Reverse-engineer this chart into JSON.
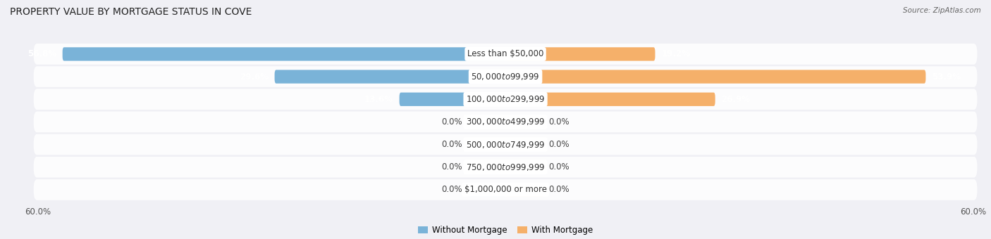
{
  "title": "PROPERTY VALUE BY MORTGAGE STATUS IN COVE",
  "source": "Source: ZipAtlas.com",
  "categories": [
    "Less than $50,000",
    "$50,000 to $99,999",
    "$100,000 to $299,999",
    "$300,000 to $499,999",
    "$500,000 to $749,999",
    "$750,000 to $999,999",
    "$1,000,000 or more"
  ],
  "without_mortgage": [
    56.8,
    29.6,
    13.6,
    0.0,
    0.0,
    0.0,
    0.0
  ],
  "with_mortgage": [
    19.2,
    53.9,
    26.9,
    0.0,
    0.0,
    0.0,
    0.0
  ],
  "xlim": 60.0,
  "color_without": "#7ab3d8",
  "color_with": "#f5b06a",
  "color_without_zero": "#a8cce8",
  "color_with_zero": "#f8ceaa",
  "bar_height": 0.6,
  "zero_bar_width": 5.0,
  "row_bg_color": "#e8e8ee",
  "row_bg_light": "#f0f0f5",
  "title_fontsize": 10,
  "label_fontsize": 8.5,
  "tick_fontsize": 8.5,
  "category_fontsize": 8.5
}
